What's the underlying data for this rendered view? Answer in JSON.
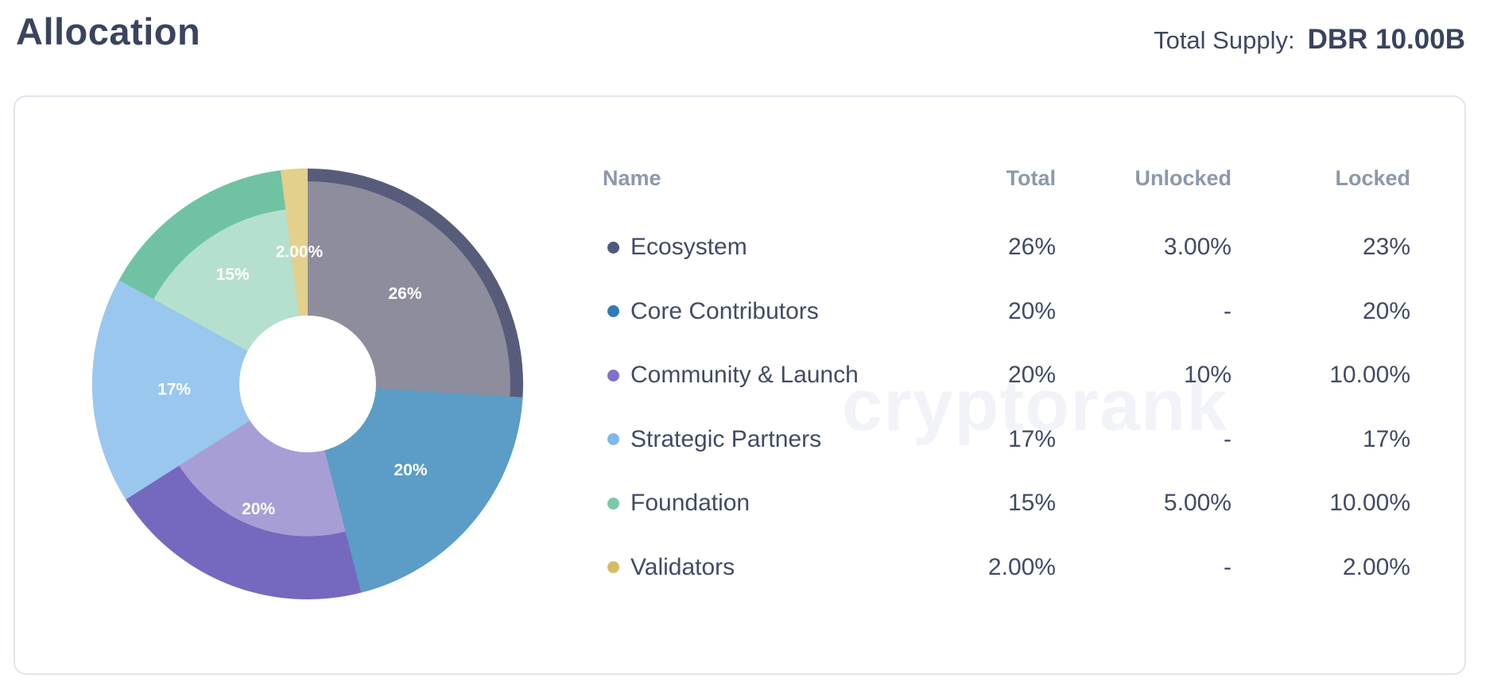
{
  "page": {
    "title": "Allocation",
    "total_supply_label": "Total Supply:",
    "total_supply_value": "DBR 10.00B",
    "watermark": "cryptorank"
  },
  "table": {
    "columns": [
      "Name",
      "Total",
      "Unlocked",
      "Locked"
    ],
    "rows": [
      {
        "name": "Ecosystem",
        "total": "26%",
        "unlocked": "3.00%",
        "locked": "23%",
        "color": "#4d5a78"
      },
      {
        "name": "Core Contributors",
        "total": "20%",
        "unlocked": "-",
        "locked": "20%",
        "color": "#2f7cb7"
      },
      {
        "name": "Community & Launch",
        "total": "20%",
        "unlocked": "10%",
        "locked": "10.00%",
        "color": "#8070cb"
      },
      {
        "name": "Strategic Partners",
        "total": "17%",
        "unlocked": "-",
        "locked": "17%",
        "color": "#7cb9ec"
      },
      {
        "name": "Foundation",
        "total": "15%",
        "unlocked": "5.00%",
        "locked": "10.00%",
        "color": "#7cc8a7"
      },
      {
        "name": "Validators",
        "total": "2.00%",
        "unlocked": "-",
        "locked": "2.00%",
        "color": "#d3bf62"
      }
    ]
  },
  "chart_data": {
    "type": "pie",
    "title": "Token Allocation donut",
    "unit": "percent",
    "start_angle_deg": 0,
    "direction": "clockwise",
    "hole_ratio": 0.317,
    "label_radius_ratio": 0.62,
    "legend_position": "table-right",
    "slices": [
      {
        "label": "Ecosystem",
        "value": 26,
        "unlocked": 3,
        "locked": 23,
        "display": "26%",
        "color": "#575c7b",
        "color_light": "#8e8d9d"
      },
      {
        "label": "Core Contributors",
        "value": 20,
        "unlocked": 0,
        "locked": 20,
        "display": "20%",
        "color": "#2f7cb7",
        "color_light": "#5b9dc6"
      },
      {
        "label": "Community & Launch",
        "value": 20,
        "unlocked": 10,
        "locked": 10,
        "display": "20%",
        "color": "#7568bf",
        "color_light": "#a79ed6"
      },
      {
        "label": "Strategic Partners",
        "value": 17,
        "unlocked": 0,
        "locked": 17,
        "display": "17%",
        "color": "#7cb9ec",
        "color_light": "#99c7ee"
      },
      {
        "label": "Foundation",
        "value": 15,
        "unlocked": 5,
        "locked": 10,
        "display": "15%",
        "color": "#6fc3a3",
        "color_light": "#b5e0ce"
      },
      {
        "label": "Validators",
        "value": 2,
        "unlocked": 0,
        "locked": 2,
        "display": "2.00%",
        "color": "#d3bf62",
        "color_light": "#e3d08c"
      }
    ]
  }
}
